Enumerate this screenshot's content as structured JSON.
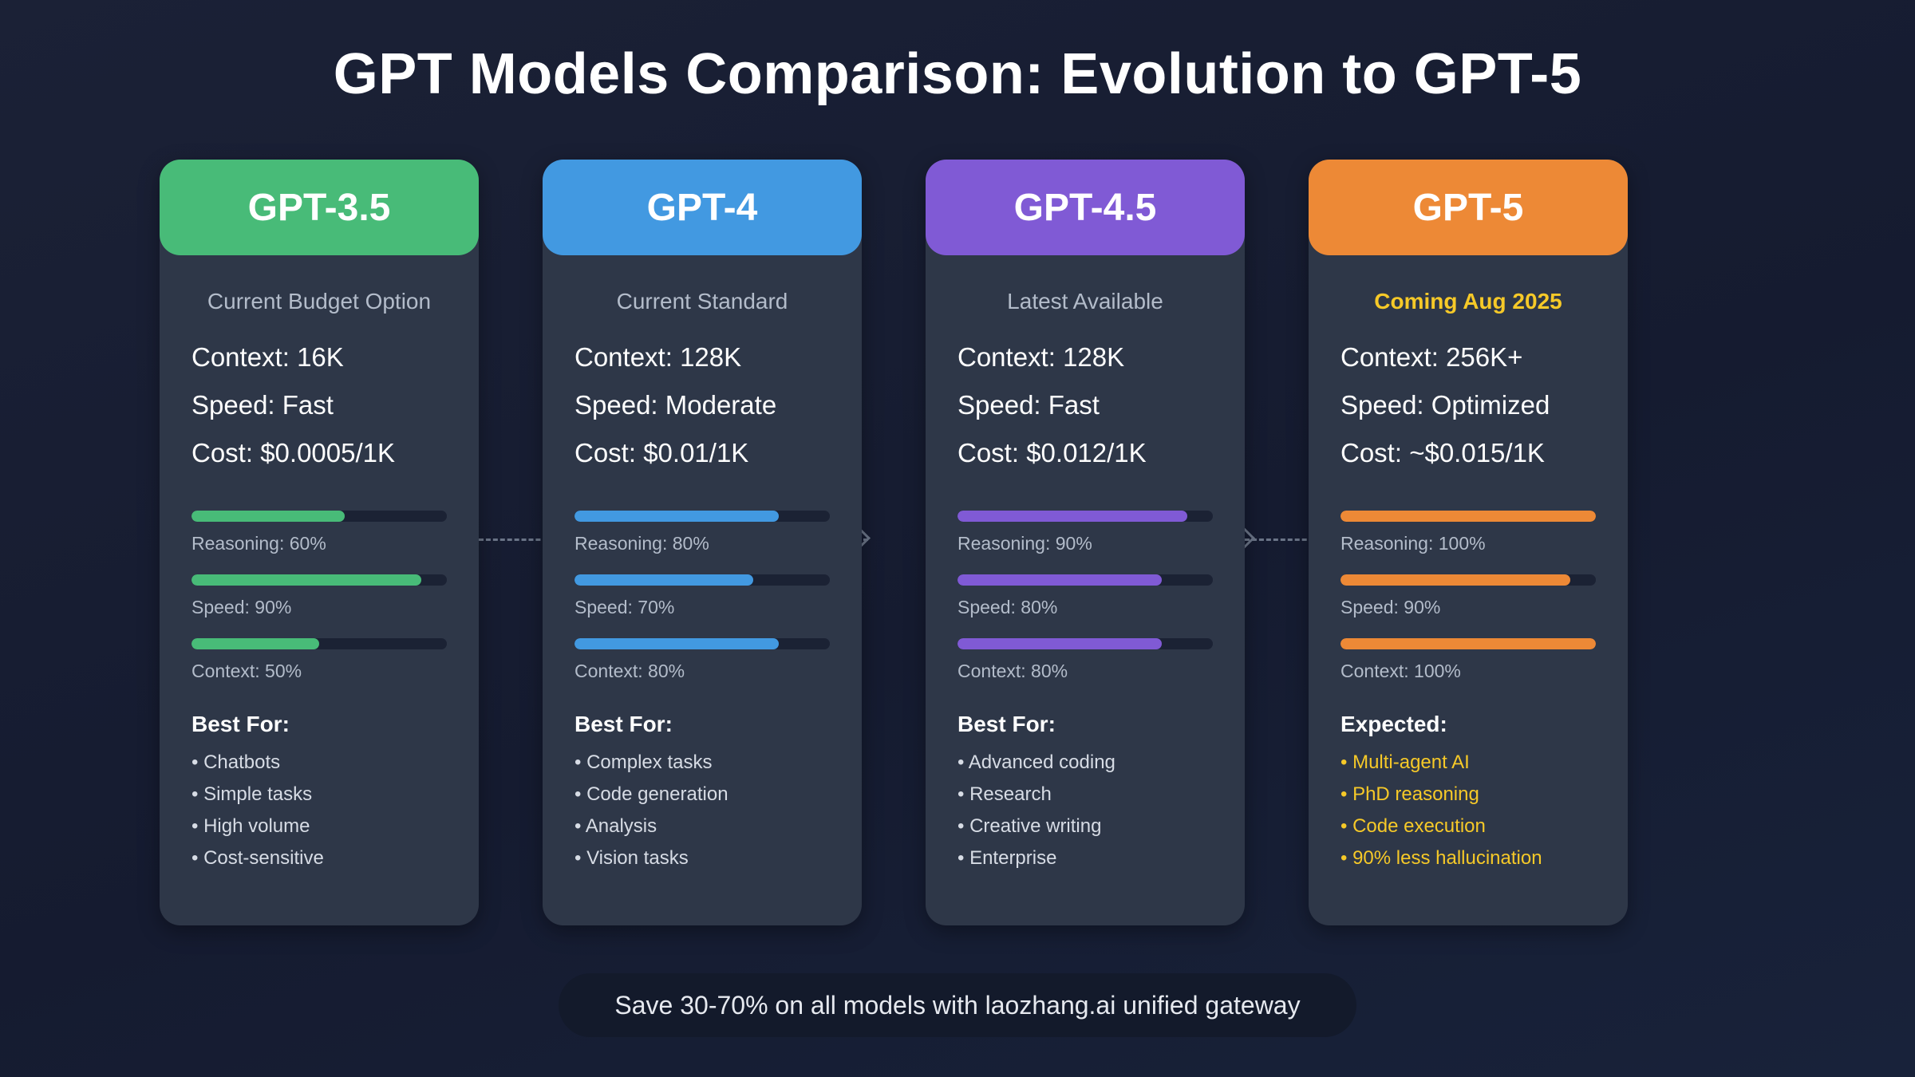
{
  "title": "GPT Models Comparison: Evolution to GPT-5",
  "models": [
    {
      "name": "GPT-3.5",
      "color": "#48bb78",
      "subtitle": "Current Budget Option",
      "subtitle_highlight": false,
      "context": "Context: 16K",
      "speed": "Speed: Fast",
      "cost": "Cost: $0.0005/1K",
      "bars": [
        {
          "label": "Reasoning: 60%",
          "value": 60
        },
        {
          "label": "Speed: 90%",
          "value": 90
        },
        {
          "label": "Context: 50%",
          "value": 50
        }
      ],
      "list_title": "Best For:",
      "list_gold": false,
      "items": [
        "• Chatbots",
        "• Simple tasks",
        "• High volume",
        "• Cost-sensitive"
      ]
    },
    {
      "name": "GPT-4",
      "color": "#4299e1",
      "subtitle": "Current Standard",
      "subtitle_highlight": false,
      "context": "Context: 128K",
      "speed": "Speed: Moderate",
      "cost": "Cost: $0.01/1K",
      "bars": [
        {
          "label": "Reasoning: 80%",
          "value": 80
        },
        {
          "label": "Speed: 70%",
          "value": 70
        },
        {
          "label": "Context: 80%",
          "value": 80
        }
      ],
      "list_title": "Best For:",
      "list_gold": false,
      "items": [
        "• Complex tasks",
        "• Code generation",
        "• Analysis",
        "• Vision tasks"
      ]
    },
    {
      "name": "GPT-4.5",
      "color": "#805ad5",
      "subtitle": "Latest Available",
      "subtitle_highlight": false,
      "context": "Context: 128K",
      "speed": "Speed: Fast",
      "cost": "Cost: $0.012/1K",
      "bars": [
        {
          "label": "Reasoning: 90%",
          "value": 90
        },
        {
          "label": "Speed: 80%",
          "value": 80
        },
        {
          "label": "Context: 80%",
          "value": 80
        }
      ],
      "list_title": "Best For:",
      "list_gold": false,
      "items": [
        "• Advanced coding",
        "• Research",
        "• Creative writing",
        "• Enterprise"
      ]
    },
    {
      "name": "GPT-5",
      "color": "#ed8936",
      "subtitle": "Coming Aug 2025",
      "subtitle_highlight": true,
      "context": "Context: 256K+",
      "speed": "Speed: Optimized",
      "cost": "Cost: ~$0.015/1K",
      "bars": [
        {
          "label": "Reasoning: 100%",
          "value": 100
        },
        {
          "label": "Speed: 90%",
          "value": 90
        },
        {
          "label": "Context: 100%",
          "value": 100
        }
      ],
      "list_title": "Expected:",
      "list_gold": true,
      "items": [
        "• Multi-agent AI",
        "• PhD reasoning",
        "• Code execution",
        "• 90% less hallucination"
      ]
    }
  ],
  "footer": "Save 30-70% on all models with laozhang.ai unified gateway"
}
